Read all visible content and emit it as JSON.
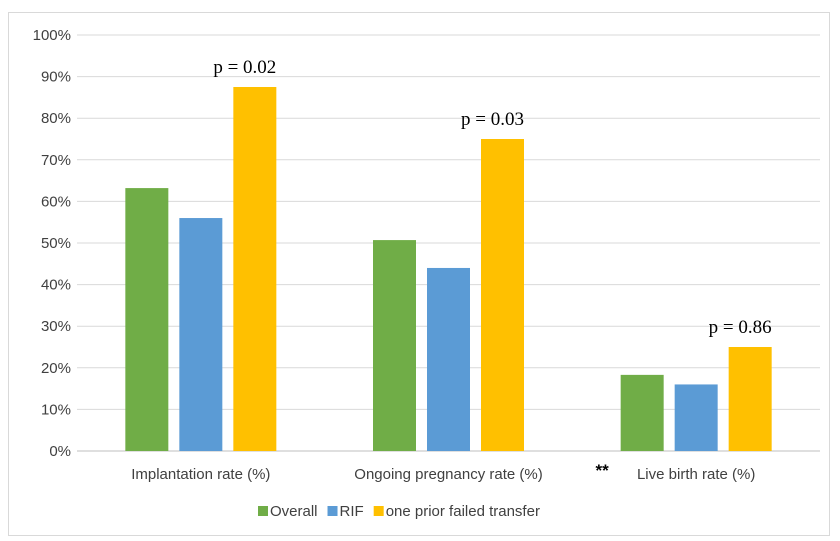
{
  "chart_data": {
    "type": "bar",
    "categories": [
      "Implantation rate (%)",
      "Ongoing pregnancy rate (%)",
      "Live birth rate (%)"
    ],
    "series": [
      {
        "name": "Overall",
        "values": [
          63.2,
          50.7,
          18.3
        ],
        "color": "#70ad47"
      },
      {
        "name": "RIF",
        "values": [
          56.0,
          44.0,
          16.0
        ],
        "color": "#5b9bd5"
      },
      {
        "name": "one prior failed transfer",
        "values": [
          87.5,
          75.0,
          25.0
        ],
        "color": "#ffc000"
      }
    ],
    "ylim": [
      0,
      100
    ],
    "yticks": [
      "0%",
      "10%",
      "20%",
      "30%",
      "40%",
      "50%",
      "60%",
      "70%",
      "80%",
      "90%",
      "100%"
    ],
    "grid": true,
    "legend_position": "bottom",
    "annotations": [
      {
        "category_index": 0,
        "text": "p = 0.02"
      },
      {
        "category_index": 1,
        "text": "p = 0.03"
      },
      {
        "category_index": 2,
        "text": "p = 0.86"
      }
    ],
    "category_marker": {
      "category_index": 2,
      "text": "**"
    }
  }
}
